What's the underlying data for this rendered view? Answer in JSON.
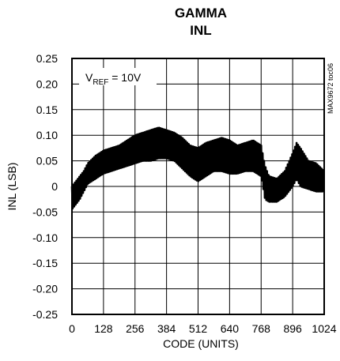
{
  "chart_data": {
    "type": "line",
    "title": "GAMMA",
    "subtitle": "INL",
    "xlabel": "CODE (UNITS)",
    "ylabel": "INL (LSB)",
    "xlim": [
      0,
      1024
    ],
    "ylim": [
      -0.25,
      0.25
    ],
    "grid": true,
    "x_ticks": [
      0,
      128,
      256,
      384,
      512,
      640,
      768,
      896,
      1024
    ],
    "y_ticks": [
      0.25,
      0.2,
      0.15,
      0.1,
      0.05,
      0,
      -0.05,
      -0.1,
      -0.15,
      -0.2,
      -0.25
    ],
    "x_tick_labels": [
      "0",
      "128",
      "256",
      "384",
      "512",
      "640",
      "768",
      "896",
      "1024"
    ],
    "y_tick_labels": [
      "0.25",
      "0.20",
      "0.15",
      "0.10",
      "0.05",
      "0",
      "-0.05",
      "-0.10",
      "-0.15",
      "-0.20",
      "-0.25"
    ],
    "annotation": {
      "prefix": "V",
      "subscript": "REF",
      "suffix": " = 10V"
    },
    "side_text": "MAX9672 toc06",
    "series": [
      {
        "color": "#000000",
        "envelope": [
          {
            "x": 0,
            "upper": 0.0,
            "lower": -0.045
          },
          {
            "x": 16,
            "upper": 0.01,
            "lower": -0.035
          },
          {
            "x": 32,
            "upper": 0.02,
            "lower": -0.025
          },
          {
            "x": 48,
            "upper": 0.03,
            "lower": -0.01
          },
          {
            "x": 64,
            "upper": 0.045,
            "lower": 0.005
          },
          {
            "x": 96,
            "upper": 0.06,
            "lower": 0.015
          },
          {
            "x": 128,
            "upper": 0.07,
            "lower": 0.025
          },
          {
            "x": 160,
            "upper": 0.075,
            "lower": 0.03
          },
          {
            "x": 192,
            "upper": 0.08,
            "lower": 0.035
          },
          {
            "x": 224,
            "upper": 0.09,
            "lower": 0.04
          },
          {
            "x": 256,
            "upper": 0.1,
            "lower": 0.045
          },
          {
            "x": 288,
            "upper": 0.105,
            "lower": 0.05
          },
          {
            "x": 320,
            "upper": 0.11,
            "lower": 0.05
          },
          {
            "x": 352,
            "upper": 0.115,
            "lower": 0.055
          },
          {
            "x": 384,
            "upper": 0.11,
            "lower": 0.055
          },
          {
            "x": 416,
            "upper": 0.105,
            "lower": 0.05
          },
          {
            "x": 448,
            "upper": 0.095,
            "lower": 0.035
          },
          {
            "x": 480,
            "upper": 0.08,
            "lower": 0.02
          },
          {
            "x": 512,
            "upper": 0.075,
            "lower": 0.01
          },
          {
            "x": 544,
            "upper": 0.085,
            "lower": 0.02
          },
          {
            "x": 576,
            "upper": 0.09,
            "lower": 0.03
          },
          {
            "x": 608,
            "upper": 0.095,
            "lower": 0.03
          },
          {
            "x": 640,
            "upper": 0.09,
            "lower": 0.025
          },
          {
            "x": 672,
            "upper": 0.08,
            "lower": 0.025
          },
          {
            "x": 704,
            "upper": 0.085,
            "lower": 0.03
          },
          {
            "x": 736,
            "upper": 0.09,
            "lower": 0.03
          },
          {
            "x": 768,
            "upper": 0.08,
            "lower": 0.02
          },
          {
            "x": 784,
            "upper": 0.04,
            "lower": -0.025
          },
          {
            "x": 800,
            "upper": 0.02,
            "lower": -0.03
          },
          {
            "x": 832,
            "upper": 0.015,
            "lower": -0.03
          },
          {
            "x": 864,
            "upper": 0.03,
            "lower": -0.02
          },
          {
            "x": 896,
            "upper": 0.065,
            "lower": 0.0
          },
          {
            "x": 912,
            "upper": 0.085,
            "lower": 0.015
          },
          {
            "x": 928,
            "upper": 0.075,
            "lower": 0.0
          },
          {
            "x": 960,
            "upper": 0.05,
            "lower": -0.005
          },
          {
            "x": 992,
            "upper": 0.045,
            "lower": -0.01
          },
          {
            "x": 1024,
            "upper": 0.03,
            "lower": -0.01
          }
        ]
      }
    ]
  }
}
